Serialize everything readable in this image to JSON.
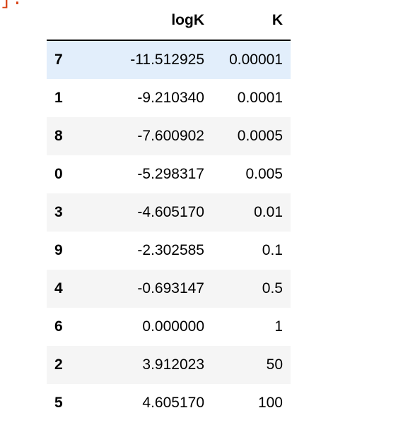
{
  "output_prompt_fragment": "]:",
  "table": {
    "columns": [
      "",
      "logK",
      "K"
    ],
    "rows": [
      {
        "index": "7",
        "logK": "-11.512925",
        "K": "0.00001"
      },
      {
        "index": "1",
        "logK": "-9.210340",
        "K": "0.0001"
      },
      {
        "index": "8",
        "logK": "-7.600902",
        "K": "0.0005"
      },
      {
        "index": "0",
        "logK": "-5.298317",
        "K": "0.005"
      },
      {
        "index": "3",
        "logK": "-4.605170",
        "K": "0.01"
      },
      {
        "index": "9",
        "logK": "-2.302585",
        "K": "0.1"
      },
      {
        "index": "4",
        "logK": "-0.693147",
        "K": "0.5"
      },
      {
        "index": "6",
        "logK": "0.000000",
        "K": "1"
      },
      {
        "index": "2",
        "logK": "3.912023",
        "K": "50"
      },
      {
        "index": "5",
        "logK": "4.605170",
        "K": "100"
      }
    ]
  },
  "colors": {
    "prompt": "#d84315",
    "stripe": "#f5f5f5",
    "hover": "#e2eefb",
    "header_rule": "#000000"
  }
}
